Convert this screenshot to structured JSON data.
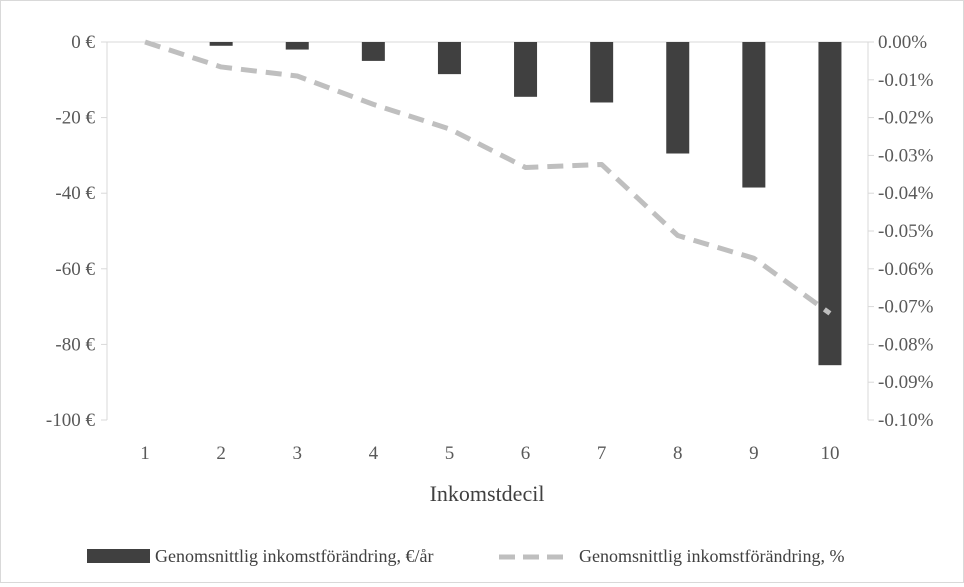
{
  "chart_data": {
    "type": "bar",
    "categories": [
      "1",
      "2",
      "3",
      "4",
      "5",
      "6",
      "7",
      "8",
      "9",
      "10"
    ],
    "xlabel": "Inkomstdecil",
    "title": "",
    "series": [
      {
        "name": "Genomsnittlig inkomstförändring, €/år",
        "type": "bar",
        "axis": "left",
        "color": "#404040",
        "values": [
          0,
          -1,
          -2,
          -5,
          -8.5,
          -14.5,
          -16,
          -29.5,
          -38.5,
          -85.5
        ]
      },
      {
        "name": "Genomsnittlig inkomstförändring, %",
        "type": "line",
        "axis": "right",
        "color": "#bfbfbf",
        "style": "dashed",
        "values": [
          0.0,
          -0.0066,
          -0.009,
          -0.0165,
          -0.023,
          -0.0332,
          -0.0324,
          -0.0512,
          -0.0572,
          -0.0718
        ]
      }
    ],
    "y_left": {
      "ylim": [
        -100,
        0
      ],
      "ticks": [
        0,
        -20,
        -40,
        -60,
        -80,
        -100
      ],
      "tick_labels": [
        "0 €",
        "-20 €",
        "-40 €",
        "-60 €",
        "-80 €",
        "-100 €"
      ]
    },
    "y_right": {
      "ylim": [
        -0.1,
        0
      ],
      "ticks": [
        0,
        -0.01,
        -0.02,
        -0.03,
        -0.04,
        -0.05,
        -0.06,
        -0.07,
        -0.08,
        -0.09,
        -0.1
      ],
      "tick_labels": [
        "0.00%",
        "-0.01%",
        "-0.02%",
        "-0.03%",
        "-0.04%",
        "-0.05%",
        "-0.06%",
        "-0.07%",
        "-0.08%",
        "-0.09%",
        "-0.10%"
      ]
    },
    "grid": false,
    "legend_position": "bottom"
  },
  "colors": {
    "bar": "#404040",
    "line": "#bfbfbf",
    "axis": "#d9d9d9",
    "text": "#595959"
  }
}
